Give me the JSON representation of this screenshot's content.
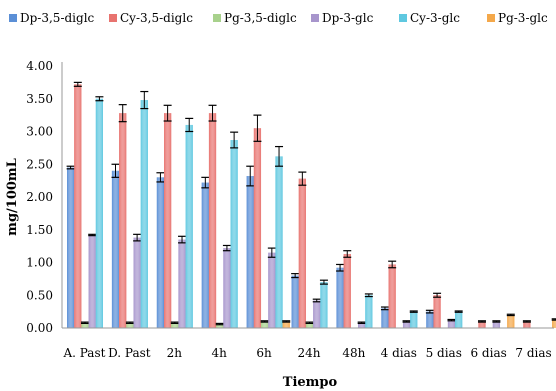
{
  "chart_data": {
    "type": "bar",
    "title": "",
    "xlabel": "Tiempo",
    "ylabel": "mg/100mL",
    "ylim": [
      0,
      4
    ],
    "yticks": [
      "0.00",
      "0.50",
      "1.00",
      "1.50",
      "2.00",
      "2.50",
      "3.00",
      "3.50",
      "4.00"
    ],
    "grid": false,
    "legend_position": "top",
    "categories": [
      "A. Past",
      "D. Past",
      "2h",
      "4h",
      "6h",
      "24h",
      "48h",
      "4 dias",
      "5 dias",
      "6 dias",
      "7 dias"
    ],
    "series": [
      {
        "name": "Dp-3,5-diglc",
        "color": "#5b8fd6",
        "values": [
          2.45,
          2.4,
          2.3,
          2.22,
          2.32,
          0.8,
          0.92,
          0.3,
          0.25,
          0.0,
          0.0
        ],
        "errors": [
          0.02,
          0.1,
          0.07,
          0.08,
          0.15,
          0.03,
          0.05,
          0.02,
          0.02,
          0.0,
          0.0
        ]
      },
      {
        "name": "Cy-3,5-diglc",
        "color": "#e8736f",
        "values": [
          3.72,
          3.28,
          3.28,
          3.28,
          3.05,
          2.28,
          1.13,
          0.97,
          0.5,
          0.1,
          0.1
        ],
        "errors": [
          0.03,
          0.13,
          0.12,
          0.12,
          0.2,
          0.1,
          0.05,
          0.05,
          0.03,
          0.01,
          0.01
        ]
      },
      {
        "name": "Pg-3,5-diglc",
        "color": "#a8d18c",
        "values": [
          0.08,
          0.08,
          0.08,
          0.06,
          0.1,
          0.08,
          0.0,
          0.0,
          0.0,
          0.0,
          0.0
        ],
        "errors": [
          0.01,
          0.01,
          0.01,
          0.01,
          0.01,
          0.01,
          0.0,
          0.0,
          0.0,
          0.0,
          0.0
        ]
      },
      {
        "name": "Dp-3-glc",
        "color": "#a795cc",
        "values": [
          1.42,
          1.38,
          1.35,
          1.22,
          1.15,
          0.42,
          0.08,
          0.1,
          0.12,
          0.1,
          0.0
        ],
        "errors": [
          0.01,
          0.05,
          0.05,
          0.04,
          0.07,
          0.02,
          0.01,
          0.01,
          0.01,
          0.01,
          0.0
        ]
      },
      {
        "name": "Cy-3-glc",
        "color": "#5fc8e0",
        "values": [
          3.5,
          3.48,
          3.1,
          2.87,
          2.62,
          0.7,
          0.5,
          0.25,
          0.25,
          0.0,
          0.0
        ],
        "errors": [
          0.03,
          0.13,
          0.1,
          0.12,
          0.15,
          0.03,
          0.02,
          0.01,
          0.01,
          0.0,
          0.0
        ]
      },
      {
        "name": "Pg-3-glc",
        "color": "#f4a84a",
        "values": [
          0.0,
          0.0,
          0.0,
          0.0,
          0.1,
          0.0,
          0.0,
          0.0,
          0.0,
          0.2,
          0.13
        ],
        "errors": [
          0.0,
          0.0,
          0.0,
          0.0,
          0.01,
          0.0,
          0.0,
          0.0,
          0.0,
          0.01,
          0.01
        ]
      }
    ]
  }
}
